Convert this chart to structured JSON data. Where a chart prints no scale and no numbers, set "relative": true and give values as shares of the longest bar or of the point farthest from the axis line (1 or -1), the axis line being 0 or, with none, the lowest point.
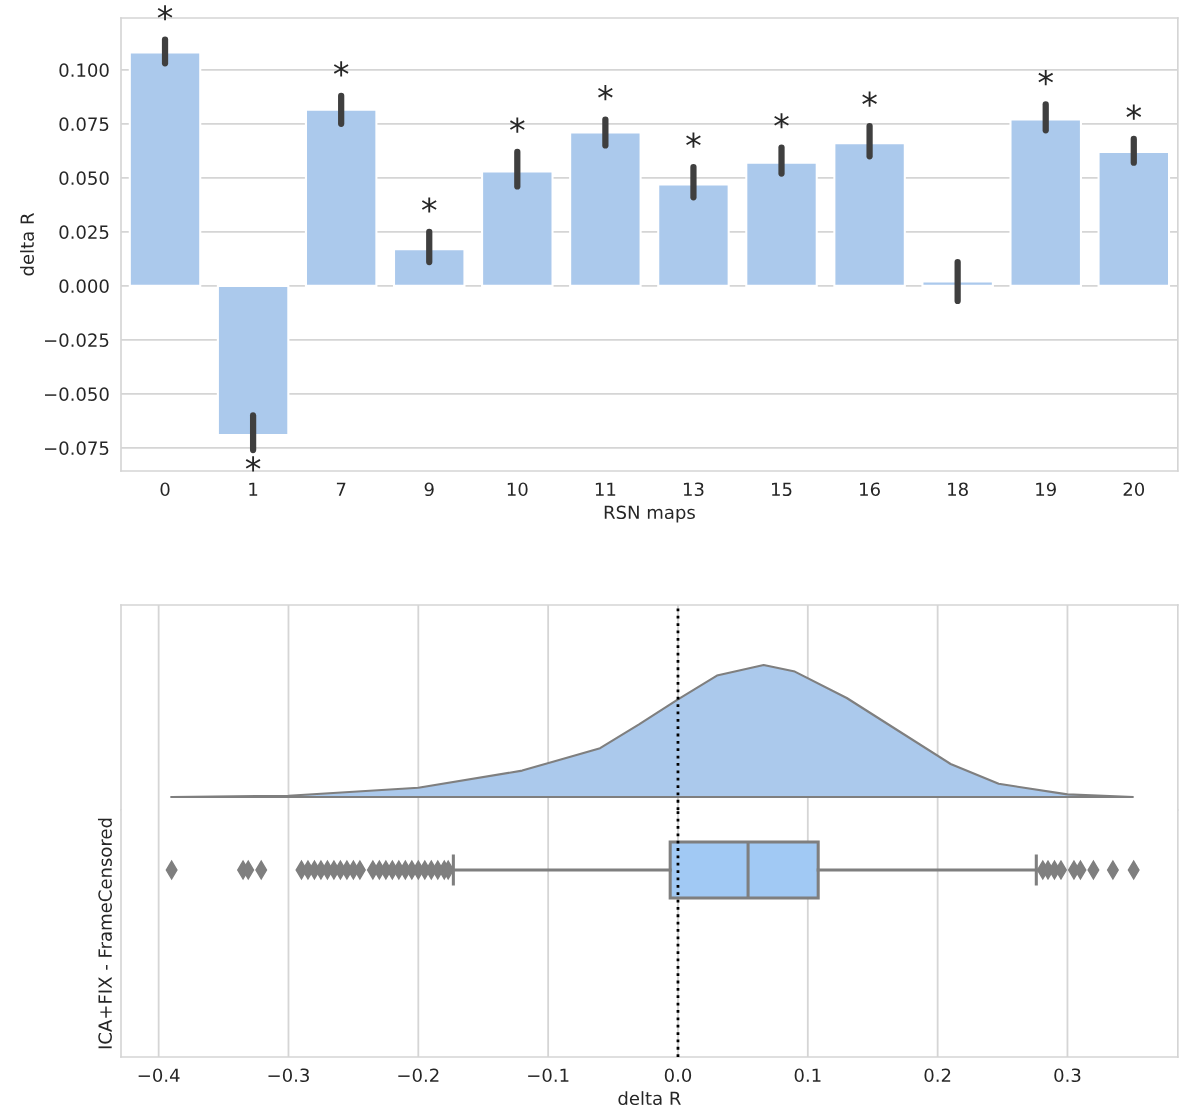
{
  "chart_data": [
    {
      "type": "bar",
      "xlabel": "RSN maps",
      "ylabel": "delta R",
      "categories": [
        "0",
        "1",
        "7",
        "9",
        "10",
        "11",
        "13",
        "15",
        "16",
        "18",
        "19",
        "20"
      ],
      "values": [
        0.108,
        -0.069,
        0.0815,
        0.017,
        0.053,
        0.071,
        0.047,
        0.057,
        0.066,
        0.002,
        0.077,
        0.062
      ],
      "errors": [
        [
          0.103,
          0.114
        ],
        [
          -0.076,
          -0.06
        ],
        [
          0.075,
          0.088
        ],
        [
          0.011,
          0.025
        ],
        [
          0.046,
          0.062
        ],
        [
          0.065,
          0.077
        ],
        [
          0.041,
          0.055
        ],
        [
          0.052,
          0.064
        ],
        [
          0.06,
          0.074
        ],
        [
          -0.007,
          0.011
        ],
        [
          0.072,
          0.084
        ],
        [
          0.057,
          0.068
        ]
      ],
      "value_labels": [
        "*",
        "*",
        "*",
        "*",
        "*",
        "*",
        "*",
        "*",
        "*",
        null,
        "*",
        "*"
      ],
      "color": "#abc9ec",
      "ylim": [
        -0.0857,
        0.124
      ],
      "yticks": [
        {
          "value": -0.075,
          "label": "−0.075"
        },
        {
          "value": -0.05,
          "label": "−0.050"
        },
        {
          "value": -0.025,
          "label": "−0.025"
        },
        {
          "value": 0.0,
          "label": "0.000"
        },
        {
          "value": 0.025,
          "label": "0.025"
        },
        {
          "value": 0.05,
          "label": "0.050"
        },
        {
          "value": 0.075,
          "label": "0.075"
        },
        {
          "value": 0.1,
          "label": "0.100"
        }
      ],
      "grid": "y"
    },
    {
      "type": "area",
      "relative": true,
      "color": "#abc9ec",
      "x": [
        -0.39,
        -0.3,
        -0.2,
        -0.12,
        -0.06,
        -0.03,
        0.0,
        0.03,
        0.066,
        0.09,
        0.13,
        0.17,
        0.21,
        0.247,
        0.3,
        0.35
      ],
      "values": [
        0,
        0.01,
        0.07,
        0.2,
        0.37,
        0.55,
        0.74,
        0.92,
        1.0,
        0.95,
        0.75,
        0.5,
        0.25,
        0.1,
        0.02,
        0
      ],
      "xlim": [
        -0.429,
        0.385
      ],
      "xticks": [
        {
          "value": -0.4,
          "label": null
        },
        {
          "value": -0.3,
          "label": null
        },
        {
          "value": -0.2,
          "label": null
        },
        {
          "value": -0.1,
          "label": null
        },
        {
          "value": 0.0,
          "label": null
        },
        {
          "value": 0.1,
          "label": null
        },
        {
          "value": 0.2,
          "label": null
        },
        {
          "value": 0.3,
          "label": null
        }
      ],
      "grid": "x",
      "tick_labels": false,
      "ref_lines": [
        {
          "axis": "x",
          "value": 0,
          "color": "#000000",
          "line_style": "dotted"
        }
      ]
    },
    {
      "type": "box",
      "orientation": "horizontal",
      "xlabel": "delta R",
      "ylabel": "ICA+FIX - FrameCensored",
      "categories": [
        null
      ],
      "boxes": [
        {
          "low": -0.173,
          "q1": -0.006,
          "median": 0.054,
          "q3": 0.108,
          "high": 0.276,
          "outliers": [
            -0.39,
            -0.335,
            -0.331,
            -0.321,
            -0.29,
            -0.285,
            -0.28,
            -0.275,
            -0.27,
            -0.265,
            -0.26,
            -0.255,
            -0.25,
            -0.245,
            -0.235,
            -0.23,
            -0.225,
            -0.22,
            -0.215,
            -0.21,
            -0.205,
            -0.2,
            -0.195,
            -0.19,
            -0.185,
            -0.18,
            -0.177,
            0.281,
            0.285,
            0.29,
            0.295,
            0.305,
            0.31,
            0.32,
            0.335,
            0.351
          ]
        }
      ],
      "color": "#a1c9f4",
      "xlim": [
        -0.429,
        0.385
      ],
      "xticks": [
        {
          "value": -0.4,
          "label": "−0.4"
        },
        {
          "value": -0.3,
          "label": "−0.3"
        },
        {
          "value": -0.2,
          "label": "−0.2"
        },
        {
          "value": -0.1,
          "label": "−0.1"
        },
        {
          "value": 0.0,
          "label": "0.0"
        },
        {
          "value": 0.1,
          "label": "0.1"
        },
        {
          "value": 0.2,
          "label": "0.2"
        },
        {
          "value": 0.3,
          "label": "0.3"
        }
      ],
      "grid": "x",
      "tick_labels": "x",
      "ref_lines": [
        {
          "axis": "x",
          "value": 0,
          "color": "#000000",
          "line_style": "dotted"
        }
      ]
    }
  ]
}
